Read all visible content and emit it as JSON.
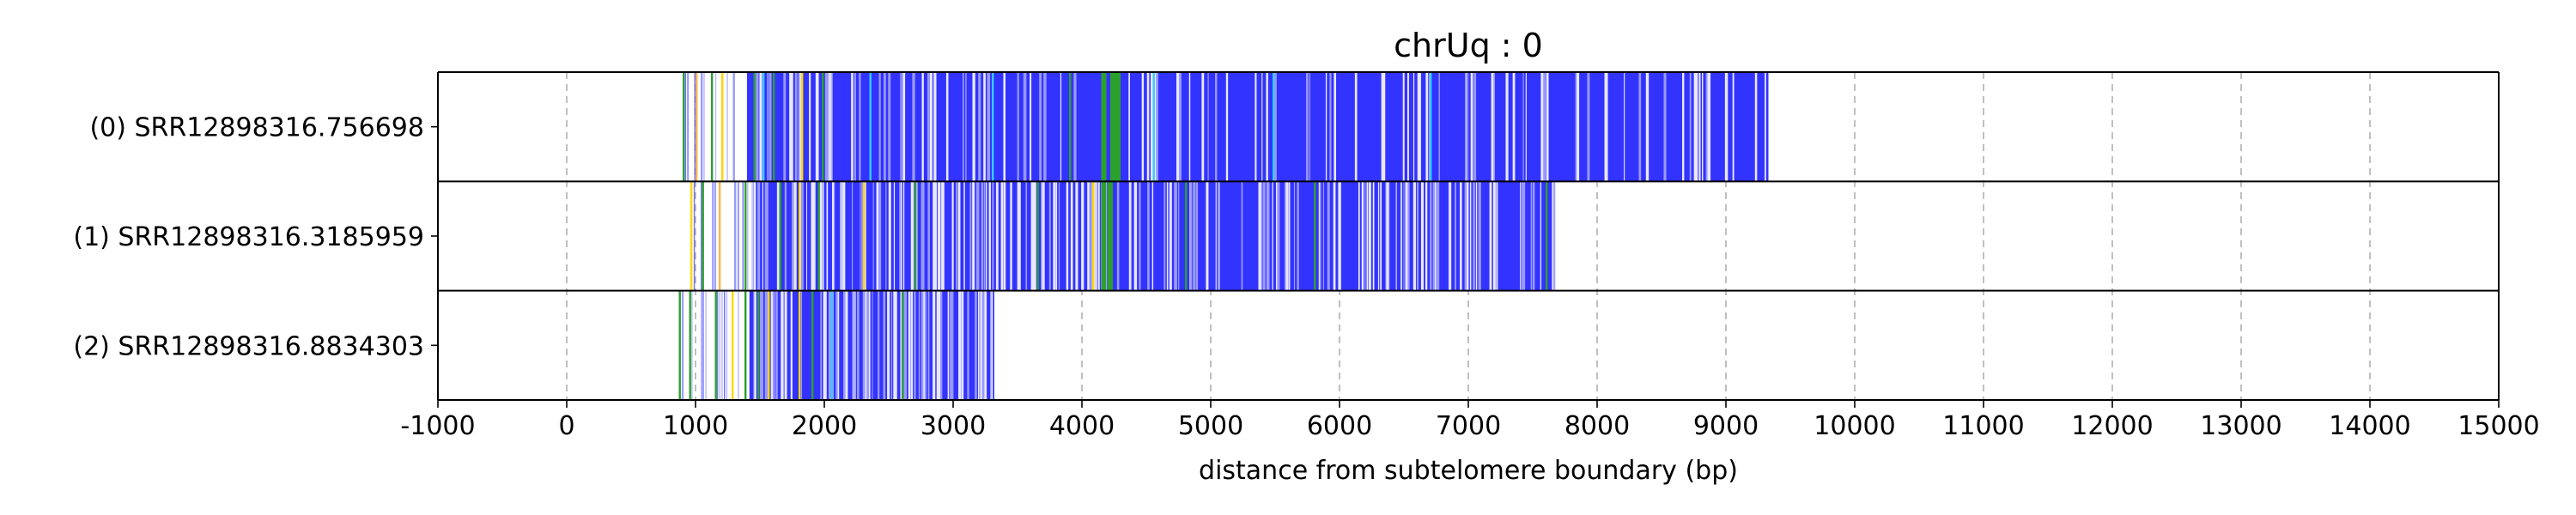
{
  "chart_data": {
    "type": "bar",
    "title": "chrUq : 0",
    "xlabel": "distance from subtelomere boundary (bp)",
    "ylabel": "",
    "xlim": [
      -1000,
      15000
    ],
    "xticks": [
      -1000,
      0,
      1000,
      2000,
      3000,
      4000,
      5000,
      6000,
      7000,
      8000,
      9000,
      10000,
      11000,
      12000,
      13000,
      14000,
      15000
    ],
    "grid": "vertical dashed",
    "colors": {
      "main": "#3333ff",
      "gap": "#e8e8ff",
      "light": "#9999ff",
      "green": "#2ca02c",
      "cyan": "#33ccff",
      "yellow": "#ffd700",
      "orange": "#ffb347"
    },
    "reads": [
      {
        "label": "(0) SRR12898316.756698",
        "start": 900,
        "dense_start": 1400,
        "end": 9330,
        "segments": [
          {
            "x": 900,
            "color": "#2ca02c"
          },
          {
            "x": 1000,
            "color": "#ffb347"
          },
          {
            "x": 1040,
            "color": "#9999ff"
          },
          {
            "x": 1120,
            "color": "#2ca02c"
          },
          {
            "x": 1200,
            "color": "#ffd700"
          },
          {
            "x": 1290,
            "color": "#9999ff"
          },
          {
            "x": 1450,
            "color": "#2ca02c"
          },
          {
            "x": 1520,
            "color": "#33ccff"
          },
          {
            "x": 1600,
            "color": "#2ca02c"
          },
          {
            "x": 1820,
            "color": "#ffd700"
          },
          {
            "x": 1980,
            "color": "#2ca02c"
          },
          {
            "x": 2350,
            "color": "#33ccff"
          },
          {
            "x": 3300,
            "color": "#33ccff"
          },
          {
            "x": 3900,
            "color": "#2ca02c"
          },
          {
            "x": 4150,
            "color": "#2ca02c"
          },
          {
            "x": 4220,
            "color": "#2ca02c"
          },
          {
            "x": 4260,
            "color": "#2ca02c"
          },
          {
            "x": 4550,
            "color": "#33ccff"
          },
          {
            "x": 5480,
            "color": "#33ccff"
          },
          {
            "x": 6700,
            "color": "#33ccff"
          }
        ]
      },
      {
        "label": "(1) SRR12898316.3185959",
        "start": 950,
        "dense_start": 1450,
        "end": 7680,
        "segments": [
          {
            "x": 960,
            "color": "#ffd700"
          },
          {
            "x": 1050,
            "color": "#2ca02c"
          },
          {
            "x": 1180,
            "color": "#ffb347"
          },
          {
            "x": 1300,
            "color": "#9999ff"
          },
          {
            "x": 1380,
            "color": "#2ca02c"
          },
          {
            "x": 1650,
            "color": "#2ca02c"
          },
          {
            "x": 1800,
            "color": "#ffd700"
          },
          {
            "x": 1950,
            "color": "#2ca02c"
          },
          {
            "x": 2300,
            "color": "#ffd700"
          },
          {
            "x": 2700,
            "color": "#2ca02c"
          },
          {
            "x": 3650,
            "color": "#2ca02c"
          },
          {
            "x": 4080,
            "color": "#ffd700"
          },
          {
            "x": 4150,
            "color": "#2ca02c"
          },
          {
            "x": 4200,
            "color": "#2ca02c"
          },
          {
            "x": 4800,
            "color": "#2ca02c"
          },
          {
            "x": 5800,
            "color": "#2ca02c"
          },
          {
            "x": 7600,
            "color": "#2ca02c"
          }
        ]
      },
      {
        "label": "(2) SRR12898316.8834303",
        "start": 860,
        "dense_start": 1420,
        "end": 3320,
        "segments": [
          {
            "x": 870,
            "color": "#2ca02c"
          },
          {
            "x": 950,
            "color": "#2ca02c"
          },
          {
            "x": 1050,
            "color": "#9999ff"
          },
          {
            "x": 1150,
            "color": "#2ca02c"
          },
          {
            "x": 1280,
            "color": "#ffd700"
          },
          {
            "x": 1380,
            "color": "#2ca02c"
          },
          {
            "x": 1480,
            "color": "#2ca02c"
          },
          {
            "x": 1560,
            "color": "#ffd700"
          },
          {
            "x": 1800,
            "color": "#ffd700"
          },
          {
            "x": 1900,
            "color": "#2ca02c"
          },
          {
            "x": 2050,
            "color": "#33ccff"
          },
          {
            "x": 2600,
            "color": "#2ca02c"
          },
          {
            "x": 2900,
            "color": "#9999ff"
          }
        ]
      }
    ]
  }
}
